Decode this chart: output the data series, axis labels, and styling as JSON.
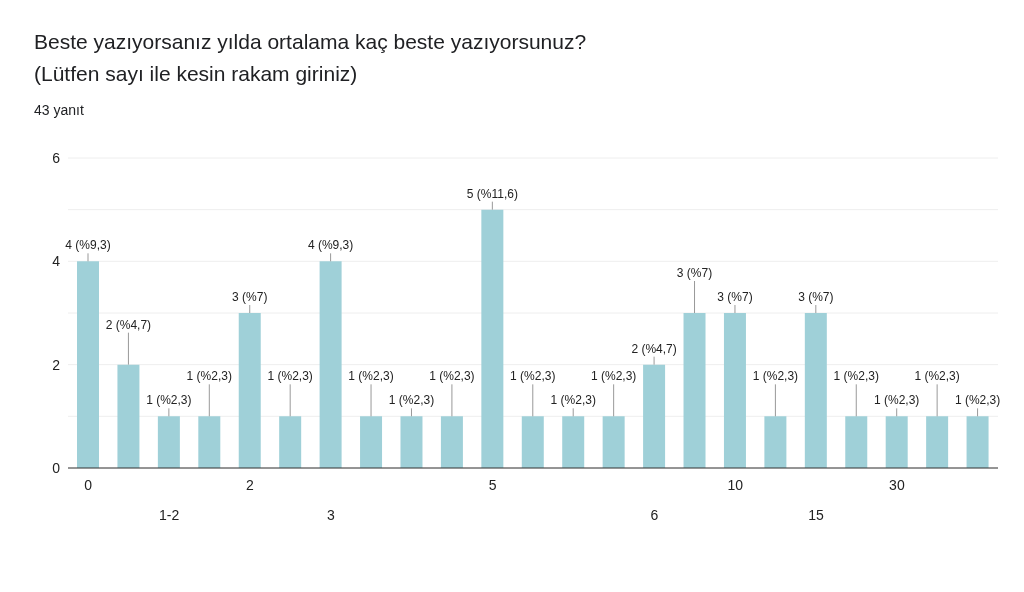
{
  "chart_data": {
    "type": "bar",
    "title": "Beste yazıyorsanız yılda ortalama kaç beste yazıyorsunuz?\n(Lütfen sayı ile kesin rakam giriniz)",
    "subtitle": "43 yanıt",
    "categories": [
      "0",
      null,
      "1-2",
      null,
      "2",
      null,
      "3",
      null,
      null,
      null,
      "5",
      null,
      null,
      null,
      "6",
      null,
      "10",
      null,
      "15",
      null,
      "30",
      null,
      null
    ],
    "values": [
      4,
      2,
      1,
      1,
      3,
      1,
      4,
      1,
      1,
      1,
      5,
      1,
      1,
      1,
      2,
      3,
      3,
      1,
      3,
      1,
      1,
      1,
      1
    ],
    "value_labels": [
      "4 (%9,3)",
      "2 (%4,7)",
      "1 (%2,3)",
      "1 (%2,3)",
      "3 (%7)",
      "1 (%2,3)",
      "4 (%9,3)",
      "1 (%2,3)",
      "1 (%2,3)",
      "1 (%2,3)",
      "5 (%11,6)",
      "1 (%2,3)",
      "1 (%2,3)",
      "1 (%2,3)",
      "2 (%4,7)",
      "3 (%7)",
      "3 (%7)",
      "1 (%2,3)",
      "3 (%7)",
      "1 (%2,3)",
      "1 (%2,3)",
      "1 (%2,3)",
      "1 (%2,3)"
    ],
    "color": "#9fd0d8",
    "ylim": [
      0,
      6
    ],
    "yticks": [
      0,
      {
        "value": 1,
        "label": null
      },
      2,
      {
        "value": 3,
        "label": null
      },
      4,
      {
        "value": 5,
        "label": null
      },
      6
    ],
    "grid": "y"
  }
}
